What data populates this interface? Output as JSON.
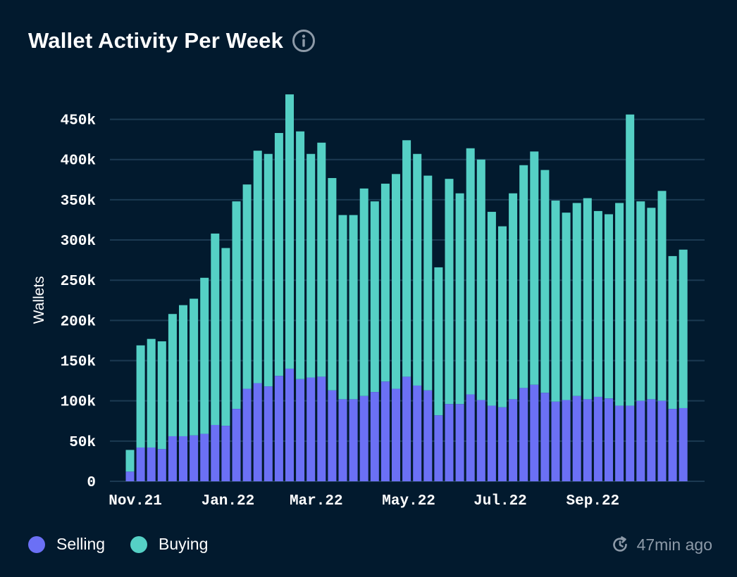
{
  "header": {
    "title": "Wallet Activity Per Week",
    "info_icon": "info-icon"
  },
  "legend": {
    "selling_label": "Selling",
    "buying_label": "Buying"
  },
  "footer": {
    "updated": "47min ago",
    "updated_icon": "refresh-clock-icon"
  },
  "colors": {
    "background": "#021a2e",
    "selling": "#6b70f5",
    "buying": "#55d0c5",
    "grid": "#1c3a52",
    "muted": "#8d9aa8"
  },
  "chart_data": {
    "type": "bar",
    "stacked": true,
    "title": "Wallet Activity Per Week",
    "xlabel": "",
    "ylabel": "Wallets",
    "ylim": [
      0,
      480000
    ],
    "yticks": [
      0,
      50000,
      100000,
      150000,
      200000,
      250000,
      300000,
      350000,
      400000,
      450000
    ],
    "ytick_labels": [
      "0",
      "50k",
      "100k",
      "150k",
      "200k",
      "250k",
      "300k",
      "350k",
      "400k",
      "450k"
    ],
    "xtick_labels": [
      "Nov.21",
      "Jan.22",
      "Mar.22",
      "May.22",
      "Jul.22",
      "Sep.22"
    ],
    "xtick_positions": [
      0.5,
      9.2,
      17.5,
      26.2,
      34.8,
      43.5
    ],
    "grid": true,
    "legend_position": "bottom-left",
    "series": [
      {
        "name": "Selling",
        "values": [
          12000,
          42000,
          42000,
          40000,
          56000,
          56000,
          57000,
          59000,
          70000,
          69000,
          90000,
          115000,
          122000,
          118000,
          131000,
          140000,
          127000,
          129000,
          130000,
          113000,
          102000,
          102000,
          106000,
          111000,
          124000,
          115000,
          130000,
          119000,
          113000,
          82000,
          96000,
          96000,
          108000,
          101000,
          94000,
          92000,
          102000,
          116000,
          120000,
          110000,
          99000,
          101000,
          106000,
          102000,
          105000,
          103000,
          94000,
          94000,
          100000,
          102000,
          100000,
          90000,
          91000
        ]
      },
      {
        "name": "Buying",
        "values": [
          27000,
          127000,
          135000,
          134000,
          152000,
          163000,
          170000,
          194000,
          238000,
          221000,
          258000,
          254000,
          289000,
          289000,
          302000,
          341000,
          308000,
          278000,
          291000,
          264000,
          229000,
          229000,
          258000,
          237000,
          246000,
          267000,
          294000,
          288000,
          267000,
          184000,
          280000,
          262000,
          306000,
          299000,
          241000,
          225000,
          256000,
          277000,
          290000,
          277000,
          250000,
          233000,
          240000,
          250000,
          231000,
          229000,
          252000,
          362000,
          248000,
          238000,
          261000,
          190000,
          197000
        ]
      }
    ]
  }
}
